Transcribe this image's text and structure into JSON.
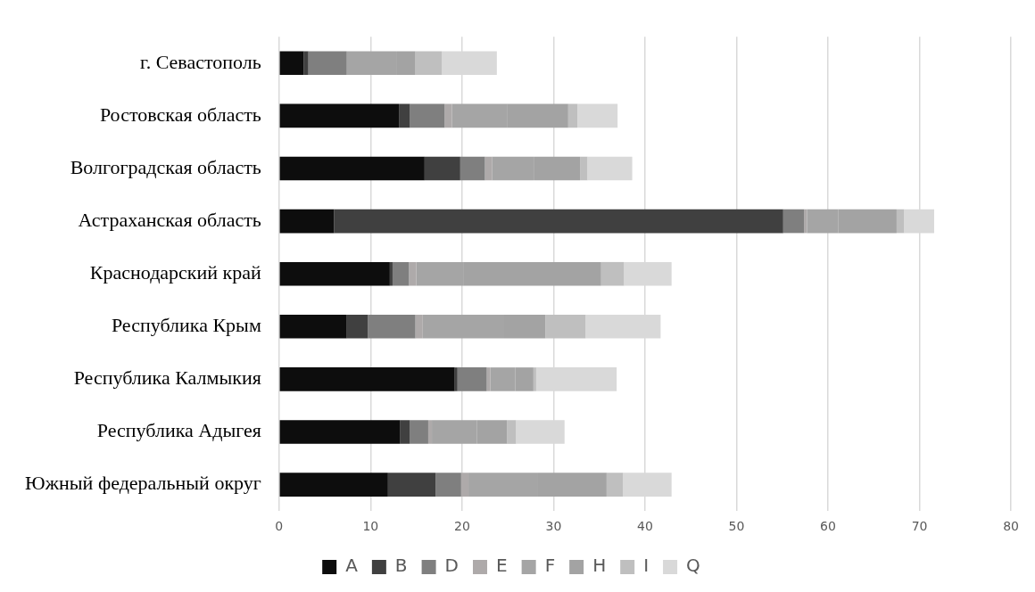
{
  "chart_data": {
    "type": "bar",
    "orientation": "horizontal",
    "stacked": true,
    "grid": "x",
    "legend": "bottom",
    "categories": [
      "г. Севастополь",
      "Ростовская область",
      "Волгоградская область",
      "Астраханская область",
      "Краснодарский край",
      "Республика Крым",
      "Республика Калмыкия",
      "Республика Адыгея",
      "Южный федеральный округ"
    ],
    "xlim": [
      0,
      80
    ],
    "xticks": [
      0,
      10,
      20,
      30,
      40,
      50,
      60,
      70,
      80
    ],
    "series": [
      {
        "name": "A",
        "color": "#0d0d0d",
        "values": [
          2.7,
          13.1,
          15.9,
          6.0,
          12.1,
          7.4,
          19.2,
          13.2,
          11.9
        ]
      },
      {
        "name": "B",
        "color": "#404040",
        "values": [
          0.5,
          1.2,
          3.9,
          49.1,
          0.3,
          2.3,
          0.3,
          1.1,
          5.2
        ]
      },
      {
        "name": "D",
        "color": "#7f7f7f",
        "values": [
          4.2,
          3.8,
          2.7,
          2.3,
          1.8,
          5.2,
          3.2,
          2.0,
          2.8
        ]
      },
      {
        "name": "E",
        "color": "#aeaaaa",
        "values": [
          0,
          0.8,
          0.8,
          0.3,
          0.8,
          0.8,
          0.4,
          0.4,
          0.8
        ]
      },
      {
        "name": "F",
        "color": "#a5a5a5",
        "values": [
          5.4,
          6.0,
          4.6,
          3.4,
          5.2,
          8.8,
          2.7,
          4.9,
          7.6
        ]
      },
      {
        "name": "H",
        "color": "#a3a3a3",
        "values": [
          2.1,
          6.7,
          5.0,
          6.4,
          15.0,
          4.6,
          2.0,
          3.3,
          7.5
        ]
      },
      {
        "name": "I",
        "color": "#bfbfbf",
        "values": [
          2.9,
          1.0,
          0.8,
          0.8,
          2.5,
          4.4,
          0.3,
          1.0,
          1.8
        ]
      },
      {
        "name": "Q",
        "color": "#d9d9d9",
        "values": [
          6.0,
          4.4,
          4.9,
          3.3,
          5.2,
          8.2,
          8.8,
          5.3,
          5.3
        ]
      }
    ]
  }
}
